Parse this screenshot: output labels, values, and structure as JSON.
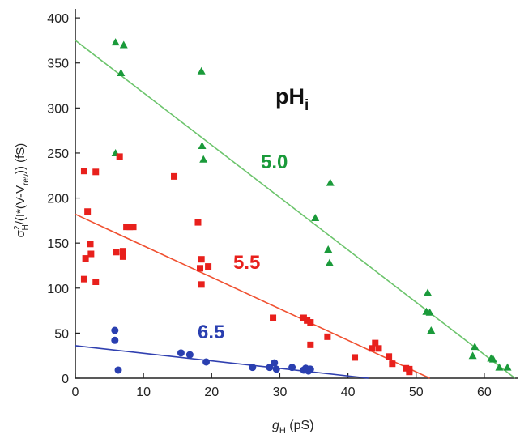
{
  "chart_data": {
    "type": "scatter",
    "annotation": {
      "main": "pH",
      "sub": "i"
    },
    "x_label": {
      "main": "g",
      "sub": "H",
      "rest": " (pS)"
    },
    "y_label": {
      "a": "σ",
      "sup": "2",
      "sub": "H",
      "b": "/(I*(V-V",
      "sub2": "rev",
      "c": ")) (fS)"
    },
    "xlim": [
      0,
      65
    ],
    "ylim": [
      0,
      410
    ],
    "xticks": [
      0,
      10,
      20,
      30,
      40,
      50,
      60
    ],
    "yticks": [
      0,
      50,
      100,
      150,
      200,
      250,
      300,
      350,
      400
    ],
    "series": [
      {
        "name": "5.0",
        "color": "#1a9a3a",
        "marker": "triangle",
        "x": [
          5.9,
          7.1,
          6.7,
          5.9,
          18.5,
          18.6,
          18.8,
          35.2,
          37.4,
          37.1,
          37.3,
          51.7,
          51.5,
          52.0,
          52.2,
          58.6,
          58.3,
          61.0,
          61.3,
          62.2,
          63.4
        ],
        "values": [
          373,
          370,
          339,
          250,
          341,
          258,
          243,
          178,
          217,
          143,
          128,
          95,
          74,
          73,
          53,
          35,
          25,
          22,
          21,
          12,
          12
        ],
        "fit": {
          "x": [
            0,
            64.5
          ],
          "values": [
            375,
            0
          ],
          "color": "#6cc46c"
        }
      },
      {
        "name": "5.5",
        "color": "#e8201c",
        "marker": "square",
        "x": [
          1.3,
          3.0,
          6.5,
          14.5,
          1.8,
          2.2,
          2.3,
          1.5,
          1.3,
          3.0,
          6.0,
          7.0,
          7.0,
          7.5,
          8.0,
          8.5,
          18.0,
          18.5,
          18.3,
          18.5,
          19.5,
          29.0,
          33.5,
          34.0,
          34.5,
          34.5,
          37.0,
          41.0,
          43.5,
          44.0,
          44.5,
          46.0,
          46.5,
          48.5,
          49.0,
          49.0
        ],
        "values": [
          230,
          229,
          246,
          224,
          185,
          149,
          138,
          133,
          110,
          107,
          140,
          141,
          135,
          168,
          168,
          168,
          173,
          132,
          122,
          104,
          124,
          67,
          67,
          64,
          62,
          37,
          46,
          23,
          33,
          39,
          33,
          24,
          16,
          11,
          10,
          7
        ],
        "fit": {
          "x": [
            0,
            52
          ],
          "values": [
            182,
            0
          ],
          "color": "#f05030"
        }
      },
      {
        "name": "6.5",
        "color": "#2a3fb0",
        "marker": "circle",
        "x": [
          5.8,
          5.8,
          6.3,
          15.5,
          16.8,
          19.2,
          26.0,
          28.5,
          29.2,
          29.5,
          31.8,
          33.5,
          33.8,
          34.0,
          34.2,
          34.5
        ],
        "values": [
          53,
          42,
          9,
          28,
          26,
          18,
          12,
          12,
          17,
          10,
          12,
          9,
          11,
          9,
          8,
          10
        ],
        "fit": {
          "x": [
            0,
            43
          ],
          "values": [
            36,
            0
          ],
          "color": "#3040b0"
        }
      }
    ]
  }
}
